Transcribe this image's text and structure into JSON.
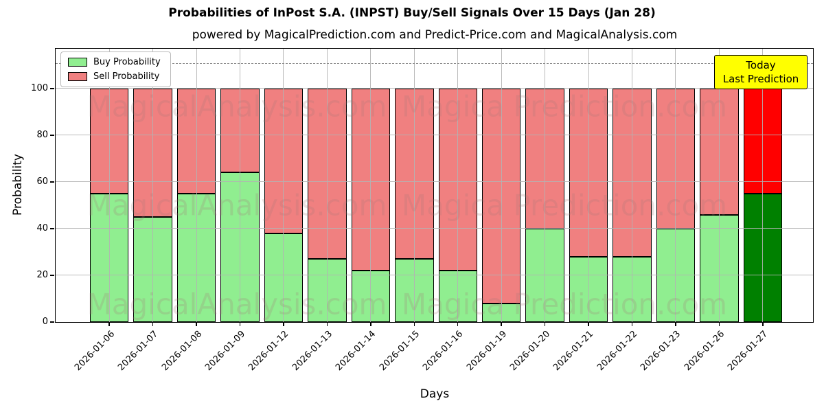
{
  "title": "Probabilities of InPost S.A. (INPST) Buy/Sell Signals Over 15 Days (Jan 28)",
  "subtitle": "powered by MagicalPrediction.com and Predict-Price.com and MagicalAnalysis.com",
  "legend": {
    "buy_label": "Buy Probability",
    "sell_label": "Sell Probability"
  },
  "annotation_box": {
    "line1": "Today",
    "line2": "Last Prediction",
    "bg_color": "#ffff00"
  },
  "watermarks": {
    "left_text": "MagicalAnalysis.com",
    "right_text": "Magica Prediction.com"
  },
  "colors": {
    "buy": "#90ee90",
    "sell": "#f08080",
    "today_buy": "#008000",
    "today_sell": "#ff0000",
    "bar_edge": "#000000",
    "grid": "#b2b2b2",
    "dashed_line": "#8a8a8a",
    "annotation_bg": "#ffff00"
  },
  "chart_data": {
    "type": "bar",
    "stacked": true,
    "title": "Probabilities of InPost S.A. (INPST) Buy/Sell Signals Over 15 Days (Jan 28)",
    "xlabel": "Days",
    "ylabel": "Probability",
    "ylim": [
      0,
      117
    ],
    "yticks": [
      0,
      20,
      40,
      60,
      80,
      100
    ],
    "grid": true,
    "legend_position": "upper left",
    "dashed_line_y": 110.7,
    "categories": [
      "2026-01-06",
      "2026-01-07",
      "2026-01-08",
      "2026-01-09",
      "2026-01-12",
      "2026-01-13",
      "2026-01-14",
      "2026-01-15",
      "2026-01-16",
      "2026-01-19",
      "2026-01-20",
      "2026-01-21",
      "2026-01-22",
      "2026-01-23",
      "2026-01-26",
      "2026-01-27"
    ],
    "series": [
      {
        "name": "Buy Probability",
        "color": "#90ee90",
        "today_color": "#008000",
        "values": [
          55,
          45,
          55,
          64,
          38,
          27,
          22,
          27,
          22,
          8,
          40,
          28,
          28,
          40,
          46,
          55
        ]
      },
      {
        "name": "Sell Probability",
        "color": "#f08080",
        "today_color": "#ff0000",
        "values": [
          45,
          55,
          45,
          36,
          62,
          73,
          78,
          73,
          78,
          92,
          60,
          72,
          72,
          60,
          54,
          45
        ]
      }
    ],
    "today_index": 15
  }
}
